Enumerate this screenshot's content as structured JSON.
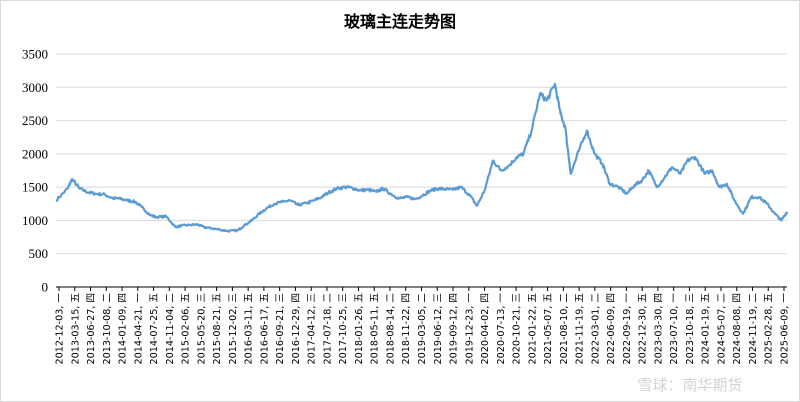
{
  "chart_data": {
    "type": "line",
    "title": "玻璃主连走势图",
    "xlabel": "",
    "ylabel": "",
    "ylim": [
      0,
      3500
    ],
    "yticks": [
      0,
      500,
      1000,
      1500,
      2000,
      2500,
      3000,
      3500
    ],
    "grid": true,
    "legend": "none",
    "series_color": "#5b9bd5",
    "x_tick_labels": [
      "2012-12-03, 一",
      "2013-03-15, 五",
      "2013-06-27, 四",
      "2013-10-08, 二",
      "2014-01-09, 四",
      "2014-04-21, 一",
      "2014-07-25, 五",
      "2014-11-04, 二",
      "2015-02-06, 五",
      "2015-05-20, 三",
      "2015-08-21, 五",
      "2015-12-02, 三",
      "2016-03-11, 五",
      "2016-06-17, 五",
      "2016-09-21, 三",
      "2016-12-29, 四",
      "2017-04-12, 三",
      "2017-07-18, 二",
      "2017-10-25, 三",
      "2018-01-26, 五",
      "2018-05-11, 五",
      "2018-08-14, 二",
      "2018-11-22, 四",
      "2019-03-05, 二",
      "2019-06-12, 三",
      "2019-09-12, 四",
      "2019-12-23, 一",
      "2020-04-02, 四",
      "2020-07-13, 一",
      "2020-10-21, 三",
      "2021-01-22, 五",
      "2021-05-07, 五",
      "2021-08-10, 二",
      "2021-11-19, 五",
      "2022-03-01, 二",
      "2022-06-09, 四",
      "2022-09-19, 一",
      "2022-12-30, 五",
      "2023-03-30, 四",
      "2023-07-10, 一",
      "2023-10-18, 三",
      "2024-01-19, 五",
      "2024-05-07, 二",
      "2024-08-08, 四",
      "2024-11-19, 二",
      "2025-02-28, 五",
      "2025-06-09, 一"
    ],
    "series": [
      {
        "x": [
          "2012-12-03",
          "2013-02-15",
          "2013-03-15",
          "2013-05-01",
          "2013-06-27",
          "2013-08-15",
          "2013-10-08",
          "2013-12-01",
          "2014-01-09",
          "2014-03-01",
          "2014-04-21",
          "2014-06-01",
          "2014-07-25",
          "2014-09-01",
          "2014-11-04",
          "2015-01-01",
          "2015-02-06",
          "2015-04-01",
          "2015-05-20",
          "2015-07-01",
          "2015-08-21",
          "2015-10-15",
          "2015-12-02",
          "2016-02-01",
          "2016-03-11",
          "2016-05-01",
          "2016-06-17",
          "2016-08-01",
          "2016-09-21",
          "2016-11-15",
          "2016-12-29",
          "2017-02-20",
          "2017-04-12",
          "2017-06-01",
          "2017-07-18",
          "2017-09-01",
          "2017-10-25",
          "2017-12-15",
          "2018-01-26",
          "2018-03-20",
          "2018-05-11",
          "2018-07-01",
          "2018-08-14",
          "2018-10-01",
          "2018-11-22",
          "2019-01-15",
          "2019-03-05",
          "2019-04-25",
          "2019-06-12",
          "2019-08-01",
          "2019-09-12",
          "2019-11-01",
          "2019-12-23",
          "2020-02-15",
          "2020-04-02",
          "2020-05-20",
          "2020-07-13",
          "2020-09-01",
          "2020-10-21",
          "2020-12-10",
          "2021-01-22",
          "2021-03-15",
          "2021-05-07",
          "2021-06-20",
          "2021-08-10",
          "2021-09-15",
          "2021-10-15",
          "2021-11-19",
          "2022-01-10",
          "2022-03-01",
          "2022-04-20",
          "2022-06-09",
          "2022-07-25",
          "2022-09-19",
          "2022-11-10",
          "2022-12-30",
          "2023-02-15",
          "2023-03-30",
          "2023-05-20",
          "2023-07-10",
          "2023-08-25",
          "2023-10-18",
          "2023-12-01",
          "2024-01-19",
          "2024-03-20",
          "2024-05-07",
          "2024-06-20",
          "2024-08-08",
          "2024-09-25",
          "2024-11-19",
          "2025-01-10",
          "2025-02-28",
          "2025-04-20",
          "2025-06-09",
          "2025-07-20",
          "2025-08-25"
        ],
        "y": [
          1300,
          1480,
          1620,
          1480,
          1420,
          1400,
          1390,
          1330,
          1330,
          1300,
          1280,
          1200,
          1080,
          1050,
          1060,
          900,
          920,
          930,
          940,
          900,
          880,
          860,
          840,
          850,
          920,
          1000,
          1100,
          1180,
          1250,
          1280,
          1300,
          1230,
          1260,
          1300,
          1350,
          1420,
          1480,
          1500,
          1490,
          1450,
          1460,
          1430,
          1480,
          1400,
          1330,
          1350,
          1320,
          1380,
          1450,
          1480,
          1470,
          1460,
          1500,
          1380,
          1220,
          1450,
          1900,
          1750,
          1820,
          1950,
          2000,
          2350,
          2900,
          2800,
          3050,
          2600,
          2400,
          1700,
          2050,
          2350,
          2000,
          1850,
          1550,
          1500,
          1400,
          1530,
          1600,
          1750,
          1500,
          1650,
          1800,
          1700,
          1900,
          1950,
          1700,
          1750,
          1500,
          1550,
          1300,
          1100,
          1350,
          1350,
          1250,
          1100,
          1000,
          1130
        ]
      }
    ]
  },
  "watermark": "雪球：南华期货"
}
